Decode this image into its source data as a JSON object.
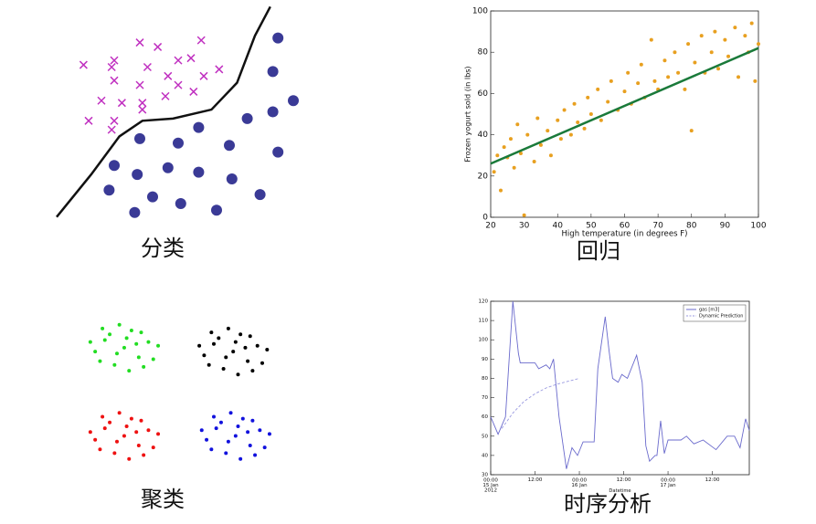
{
  "chart_data": [
    {
      "type": "scatter",
      "caption": "分类",
      "xlim": [
        0,
        100
      ],
      "ylim": [
        0,
        100
      ],
      "series": [
        {
          "style": "x",
          "color": "#c030c0",
          "x": [
            35,
            42,
            59,
            13,
            25,
            24,
            38,
            50,
            55,
            66,
            46,
            25,
            35,
            50,
            60,
            56,
            20,
            28,
            36,
            45,
            15,
            25,
            24,
            36
          ],
          "values": [
            81,
            79,
            82,
            71,
            73,
            70,
            70,
            73,
            74,
            69,
            66,
            64,
            62,
            62,
            66,
            59,
            55,
            54,
            54,
            57,
            46,
            46,
            42,
            51
          ]
        },
        {
          "style": "dot",
          "color": "#3a3a96",
          "x": [
            89,
            87,
            95,
            87,
            77,
            58,
            35,
            50,
            70,
            89,
            25,
            46,
            58,
            34,
            71,
            23,
            82,
            40,
            51,
            65,
            33
          ],
          "values": [
            83,
            68,
            55,
            50,
            47,
            43,
            38,
            36,
            35,
            32,
            26,
            25,
            23,
            22,
            20,
            15,
            13,
            12,
            9,
            6,
            5
          ]
        },
        {
          "style": "line",
          "color": "#111111",
          "x": [
            2.5,
            16,
            27,
            36,
            48,
            63,
            73,
            80,
            86
          ],
          "values": [
            3,
            22,
            39,
            46,
            47,
            51,
            63,
            84,
            97
          ]
        }
      ]
    },
    {
      "type": "scatter",
      "caption": "回归",
      "xlabel": "High temperature (in degrees F)",
      "ylabel": "Frozen yogurt sold (in lbs)",
      "xlim": [
        20,
        100
      ],
      "ylim": [
        0,
        100
      ],
      "xticks": [
        20,
        30,
        40,
        50,
        60,
        70,
        80,
        90,
        100
      ],
      "yticks": [
        0,
        20,
        40,
        60,
        80,
        100
      ],
      "series": [
        {
          "style": "dot",
          "color": "#e8a020",
          "x": [
            21,
            22,
            23,
            24,
            25,
            26,
            27,
            28,
            29,
            30,
            31,
            33,
            34,
            35,
            37,
            38,
            40,
            41,
            42,
            44,
            45,
            46,
            48,
            49,
            50,
            52,
            53,
            55,
            56,
            58,
            60,
            61,
            62,
            64,
            65,
            66,
            68,
            69,
            70,
            72,
            73,
            75,
            76,
            78,
            79,
            80,
            81,
            83,
            84,
            86,
            87,
            88,
            90,
            91,
            93,
            94,
            96,
            97,
            98,
            99,
            100
          ],
          "values": [
            22,
            30,
            13,
            34,
            29,
            38,
            24,
            45,
            31,
            1,
            40,
            27,
            48,
            35,
            42,
            30,
            47,
            38,
            52,
            40,
            55,
            46,
            43,
            58,
            50,
            62,
            47,
            56,
            66,
            52,
            61,
            70,
            55,
            65,
            74,
            58,
            86,
            66,
            62,
            76,
            68,
            80,
            70,
            62,
            84,
            42,
            75,
            88,
            70,
            80,
            90,
            72,
            86,
            78,
            92,
            68,
            88,
            80,
            94,
            66,
            84
          ]
        },
        {
          "style": "line",
          "color": "#1a7a3a",
          "x": [
            20,
            100
          ],
          "values": [
            26,
            82
          ]
        }
      ]
    },
    {
      "type": "scatter",
      "caption": "聚类",
      "xlim": [
        0,
        100
      ],
      "ylim": [
        0,
        100
      ],
      "series": [
        {
          "style": "dot",
          "color": "#22dd22",
          "x": [
            23,
            15,
            29,
            33,
            19,
            26,
            11,
            35,
            17,
            30,
            13,
            25,
            21,
            37,
            9,
            28,
            20,
            31,
            14,
            24
          ],
          "values": [
            71,
            75,
            66,
            74,
            62,
            80,
            69,
            65,
            78,
            79,
            64,
            59,
            83,
            72,
            74,
            73,
            68,
            61,
            81,
            76
          ]
        },
        {
          "style": "dot",
          "color": "#000000",
          "x": [
            68,
            60,
            74,
            78,
            64,
            71,
            56,
            80,
            62,
            75,
            58,
            70,
            66,
            82,
            54,
            73,
            65,
            76,
            59,
            69
          ],
          "values": [
            69,
            73,
            64,
            72,
            60,
            78,
            67,
            63,
            76,
            77,
            62,
            57,
            81,
            70,
            72,
            71,
            66,
            59,
            79,
            74
          ]
        },
        {
          "style": "dot",
          "color": "#ee1111",
          "x": [
            23,
            15,
            29,
            33,
            19,
            26,
            11,
            35,
            17,
            30,
            13,
            25,
            21,
            37,
            9,
            28,
            20,
            31,
            14,
            24
          ],
          "values": [
            25,
            29,
            20,
            28,
            16,
            34,
            23,
            19,
            32,
            33,
            18,
            13,
            37,
            26,
            27,
            27,
            22,
            15,
            35,
            30
          ]
        },
        {
          "style": "dot",
          "color": "#1111dd",
          "x": [
            69,
            61,
            75,
            79,
            65,
            72,
            57,
            81,
            63,
            76,
            59,
            71,
            67,
            83,
            55,
            74,
            66,
            77,
            60,
            70
          ],
          "values": [
            25,
            29,
            20,
            28,
            16,
            34,
            23,
            19,
            32,
            33,
            18,
            13,
            37,
            26,
            28,
            27,
            22,
            15,
            35,
            30
          ]
        }
      ]
    },
    {
      "type": "line",
      "caption": "时序分析",
      "xlabel": "Datetime",
      "legend": "upper right",
      "xlim": [
        0,
        70
      ],
      "ylim": [
        30,
        120
      ],
      "xticks": [
        {
          "value": 0,
          "label": "00:00\n15 Jan\n2012"
        },
        {
          "value": 12,
          "label": "12:00"
        },
        {
          "value": 24,
          "label": "00:00\n16 Jan"
        },
        {
          "value": 36,
          "label": "12:00"
        },
        {
          "value": 48,
          "label": "00:00\n17 Jan"
        },
        {
          "value": 60,
          "label": "12:00"
        }
      ],
      "yticks": [
        30,
        40,
        50,
        60,
        70,
        80,
        90,
        100,
        110,
        120
      ],
      "series": [
        {
          "name": "gas [m3]",
          "style": "line",
          "color": "#6a6acc",
          "x": [
            0,
            2,
            4,
            6,
            7.5,
            8,
            12,
            13,
            15,
            16,
            17,
            18.5,
            20.5,
            22,
            23.5,
            25,
            28,
            29,
            31,
            32,
            33,
            34.5,
            35.5,
            37,
            39.5,
            41,
            42,
            43,
            44.5,
            45,
            46,
            47,
            48,
            51.5,
            53,
            55,
            57.5,
            61,
            64,
            66,
            67.5,
            69,
            70
          ],
          "values": [
            60,
            51,
            60,
            120,
            93,
            88,
            88,
            85,
            87,
            85,
            90,
            60,
            33,
            44,
            40,
            47,
            47,
            85,
            112,
            95,
            80,
            78,
            82,
            80,
            92,
            78,
            45,
            37,
            40,
            40,
            58,
            41,
            48,
            48,
            50,
            46,
            48,
            43,
            50,
            50,
            44,
            59,
            53
          ]
        },
        {
          "name": "Dynamic Prediction",
          "style": "dashed",
          "color": "#9a9ae0",
          "x": [
            3,
            6,
            9,
            12,
            15,
            18,
            21,
            24
          ],
          "values": [
            54,
            62,
            68,
            72,
            75,
            77,
            78.5,
            80
          ]
        }
      ]
    }
  ]
}
